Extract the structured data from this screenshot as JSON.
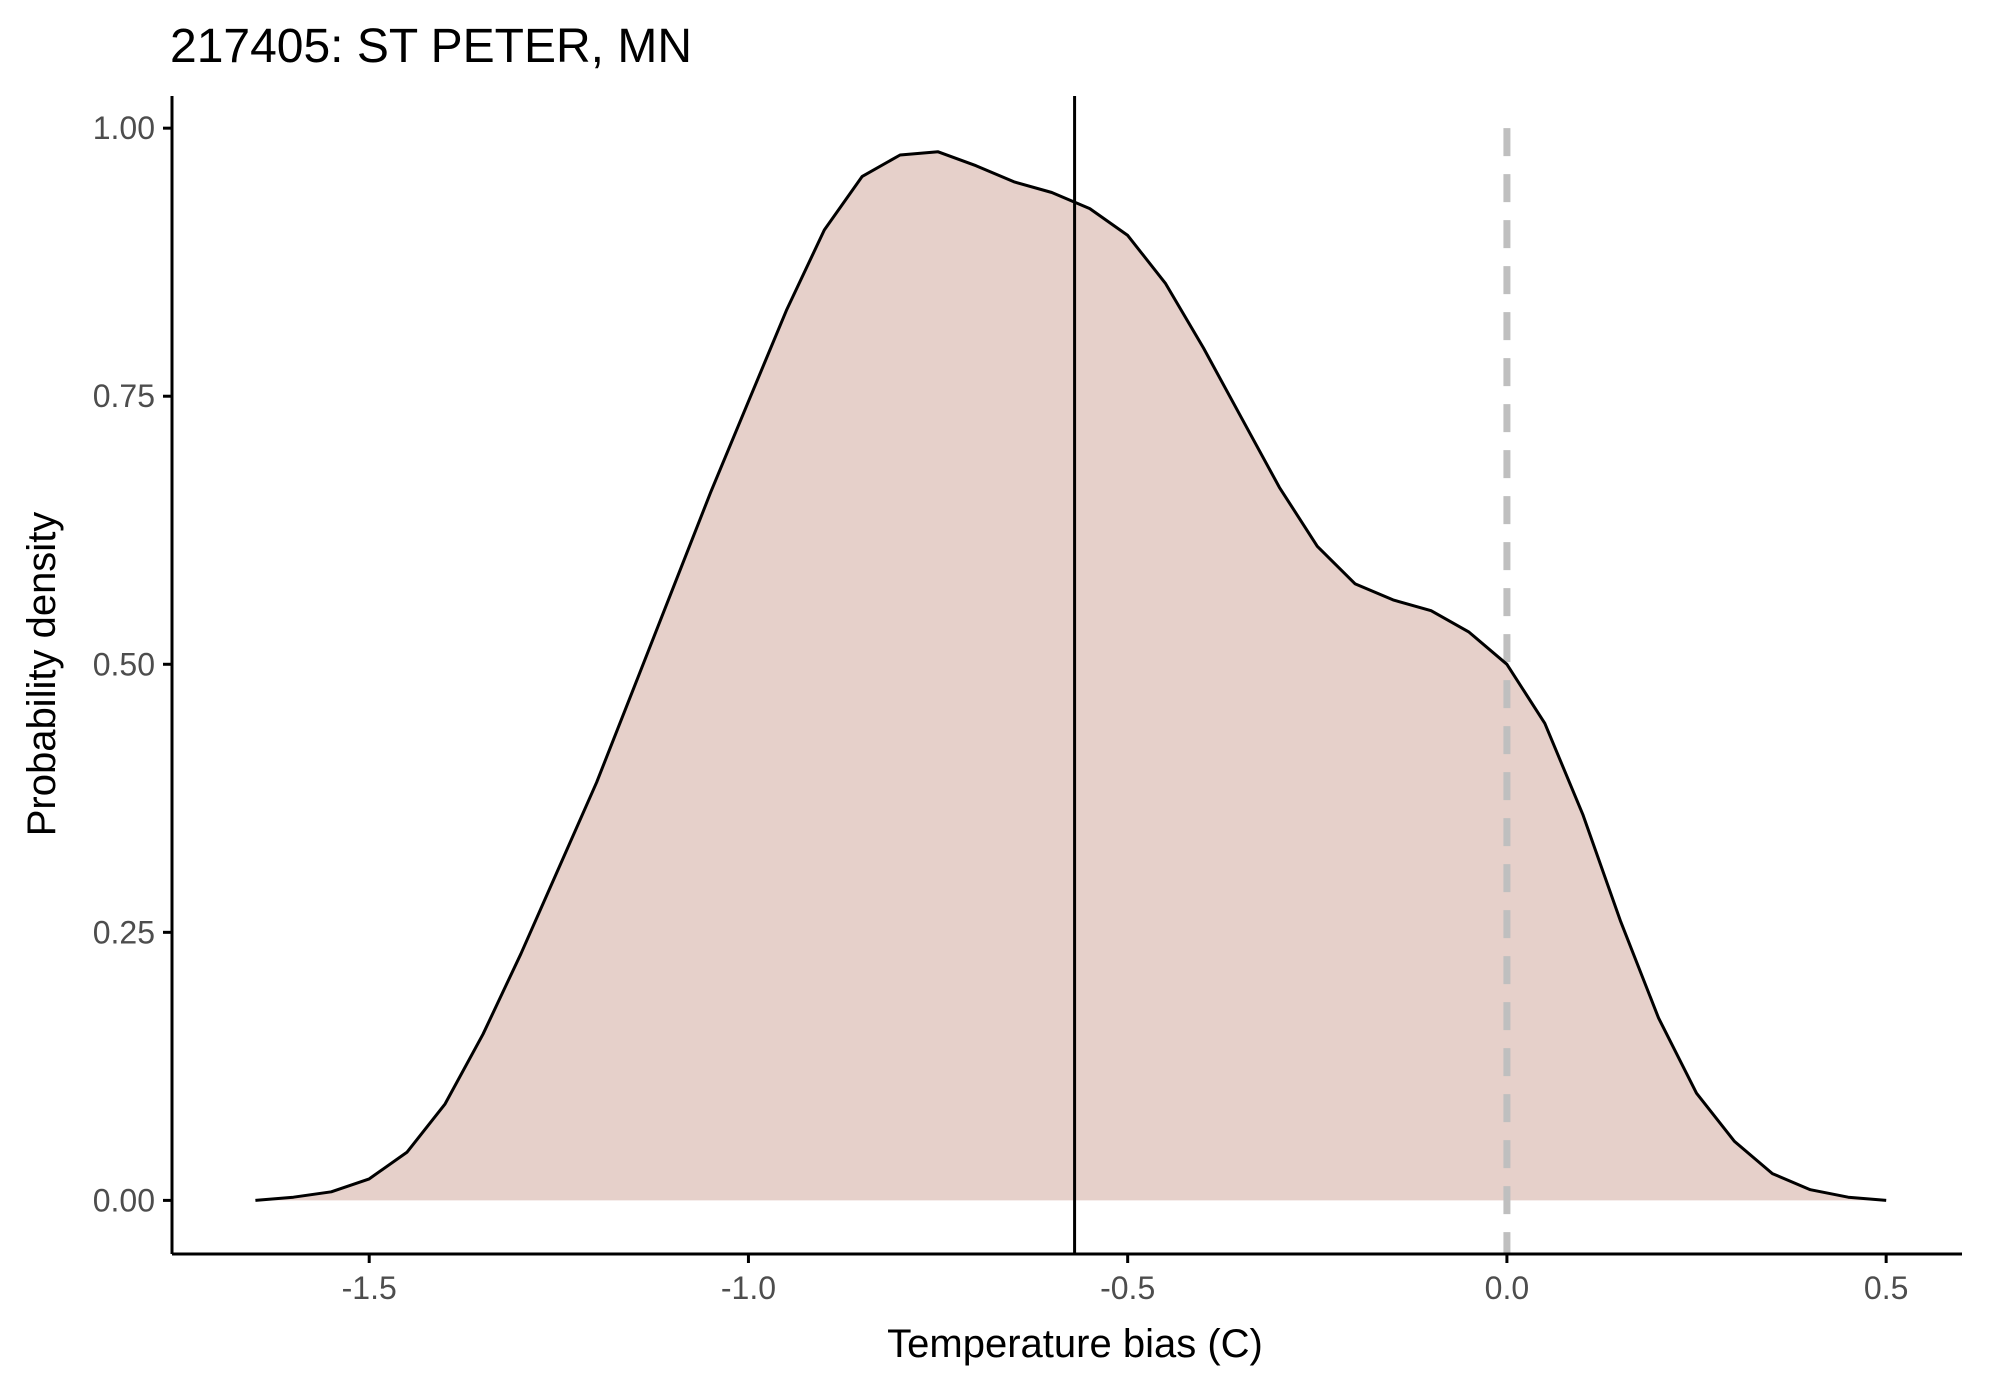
{
  "chart_data": {
    "type": "area",
    "title": "217405: ST PETER, MN",
    "xlabel": "Temperature bias (C)",
    "ylabel": "Probability density",
    "xlim": [
      -1.76,
      0.6
    ],
    "ylim": [
      -0.05,
      1.03
    ],
    "x_ticks": [
      -1.5,
      -1.0,
      -0.5,
      0.0,
      0.5
    ],
    "x_tick_labels": [
      "-1.5",
      "-1.0",
      "-0.5",
      "0.0",
      "0.5"
    ],
    "y_ticks": [
      0.0,
      0.25,
      0.5,
      0.75,
      1.0
    ],
    "y_tick_labels": [
      "0.00",
      "0.25",
      "0.50",
      "0.75",
      "1.00"
    ],
    "grid": false,
    "legend": "none",
    "fill_color": "#e6d0ca",
    "line_color": "#000000",
    "reference_lines": [
      {
        "x": -0.57,
        "style": "solid",
        "color": "#000000"
      },
      {
        "x": 0.0,
        "style": "dashed",
        "color": "#bfbfbf"
      }
    ],
    "series": [
      {
        "x": [
          -1.65,
          -1.6,
          -1.55,
          -1.5,
          -1.45,
          -1.4,
          -1.35,
          -1.3,
          -1.25,
          -1.2,
          -1.15,
          -1.1,
          -1.05,
          -1.0,
          -0.95,
          -0.9,
          -0.85,
          -0.8,
          -0.75,
          -0.7,
          -0.65,
          -0.6,
          -0.55,
          -0.5,
          -0.45,
          -0.4,
          -0.35,
          -0.3,
          -0.25,
          -0.2,
          -0.15,
          -0.1,
          -0.05,
          0.0,
          0.05,
          0.1,
          0.15,
          0.2,
          0.25,
          0.3,
          0.35,
          0.4,
          0.45,
          0.5
        ],
        "y": [
          0.0,
          0.003,
          0.008,
          0.02,
          0.045,
          0.09,
          0.155,
          0.23,
          0.31,
          0.39,
          0.48,
          0.57,
          0.66,
          0.745,
          0.83,
          0.905,
          0.955,
          0.975,
          0.978,
          0.965,
          0.95,
          0.94,
          0.925,
          0.9,
          0.855,
          0.795,
          0.73,
          0.665,
          0.61,
          0.575,
          0.56,
          0.55,
          0.53,
          0.5,
          0.445,
          0.36,
          0.26,
          0.17,
          0.1,
          0.055,
          0.025,
          0.01,
          0.003,
          0.0
        ]
      }
    ]
  }
}
